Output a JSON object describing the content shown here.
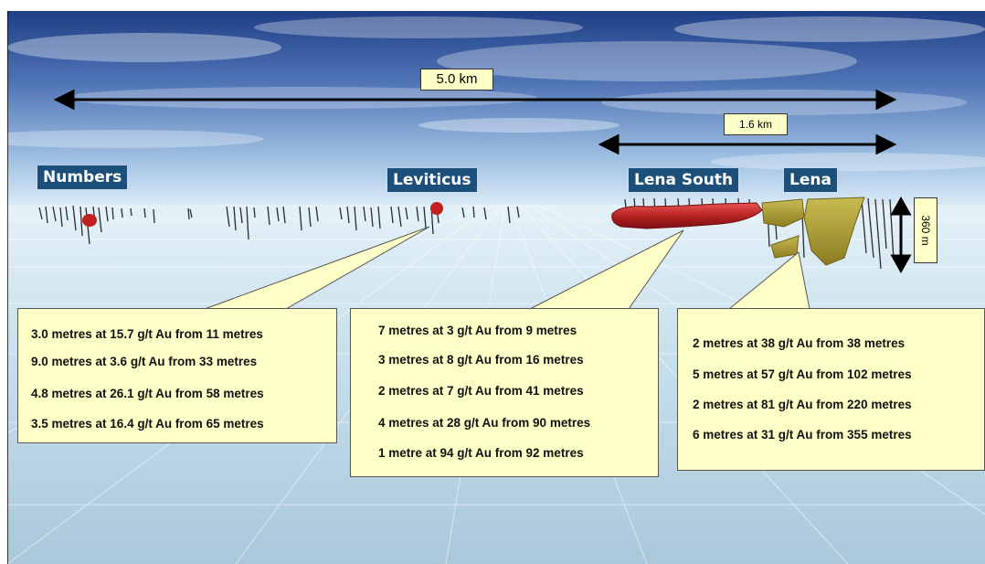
{
  "scale": {
    "overall_distance": "5.0 km",
    "lena_distance": "1.6 km",
    "depth": "360 m"
  },
  "deposits": {
    "numbers": "Numbers",
    "leviticus": "Leviticus",
    "lena_south": "Lena South",
    "lena": "Lena"
  },
  "callouts": {
    "leviticus": [
      "3.0 metres at 15.7 g/t Au from 11 metres",
      "9.0 metres at 3.6 g/t  Au from 33 metres",
      "4.8 metres at 26.1 g/t Au from 58 metres",
      "3.5 metres at 16.4 g/t Au from 65 metres"
    ],
    "lena_south": [
      "7 metres at 3 g/t Au from 9 metres",
      "3 metres at 8 g/t Au from 16 metres",
      "2 metres at 7 g/t  Au from 41 metres",
      "4 metres at 28 g/t Au from 90 metres",
      "1 metre at 94 g/t Au from 92 metres"
    ],
    "lena": [
      "2 metres at 38 g/t Au from 38 metres",
      "5 metres at 57 g/t  Au from 102 metres",
      "2 metres at 81 g/t Au from 220 metres",
      "6 metres at 31 g/t Au from 355 metres"
    ]
  }
}
